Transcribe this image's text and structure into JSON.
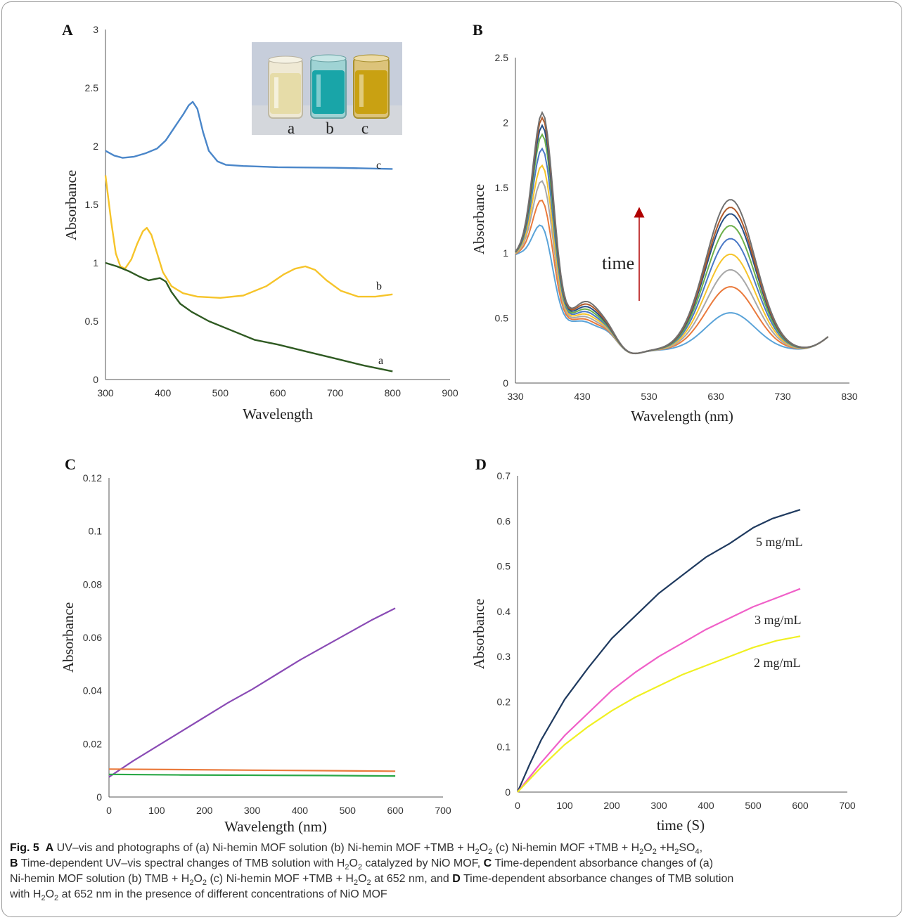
{
  "colors": {
    "A_a": "#2f5a22",
    "A_b": "#f6c42a",
    "A_c": "#4a86c9",
    "D_5": "#1f3a5f",
    "D_3": "#f060c8",
    "D_2": "#f0f022",
    "C_1": "#8a4bb5",
    "C_2": "#ea7a3c",
    "C_3": "#2aa847",
    "arrow": "#b00000",
    "time_text": "#7a3a9a",
    "vial_letter": "#e01818"
  },
  "chart_data": [
    {
      "panel": "A",
      "type": "line",
      "xlabel": "Wavelength",
      "ylabel": "Absorbance",
      "xlim": [
        300,
        900
      ],
      "ylim": [
        0,
        3
      ],
      "xticks": [
        "300",
        "400",
        "500",
        "600",
        "700",
        "800",
        "900"
      ],
      "yticks": [
        "0",
        "0.5",
        "1",
        "1.5",
        "2",
        "2.5",
        "3"
      ],
      "inset": {
        "type": "photograph",
        "labels": [
          "a",
          "b",
          "c"
        ]
      },
      "series": [
        {
          "name": "c",
          "color_key": "A_c",
          "points": [
            [
              300,
              1.96
            ],
            [
              315,
              1.92
            ],
            [
              330,
              1.9
            ],
            [
              350,
              1.91
            ],
            [
              370,
              1.94
            ],
            [
              390,
              1.98
            ],
            [
              405,
              2.05
            ],
            [
              420,
              2.16
            ],
            [
              435,
              2.27
            ],
            [
              445,
              2.35
            ],
            [
              452,
              2.38
            ],
            [
              460,
              2.32
            ],
            [
              470,
              2.12
            ],
            [
              480,
              1.96
            ],
            [
              495,
              1.87
            ],
            [
              510,
              1.84
            ],
            [
              540,
              1.83
            ],
            [
              600,
              1.82
            ],
            [
              700,
              1.815
            ],
            [
              800,
              1.805
            ]
          ]
        },
        {
          "name": "b",
          "color_key": "A_b",
          "points": [
            [
              300,
              1.75
            ],
            [
              310,
              1.35
            ],
            [
              318,
              1.08
            ],
            [
              326,
              0.97
            ],
            [
              334,
              0.95
            ],
            [
              345,
              1.03
            ],
            [
              355,
              1.16
            ],
            [
              365,
              1.27
            ],
            [
              372,
              1.3
            ],
            [
              380,
              1.24
            ],
            [
              390,
              1.08
            ],
            [
              400,
              0.92
            ],
            [
              415,
              0.8
            ],
            [
              435,
              0.74
            ],
            [
              460,
              0.71
            ],
            [
              500,
              0.7
            ],
            [
              540,
              0.72
            ],
            [
              580,
              0.8
            ],
            [
              610,
              0.9
            ],
            [
              630,
              0.95
            ],
            [
              648,
              0.97
            ],
            [
              665,
              0.94
            ],
            [
              685,
              0.85
            ],
            [
              710,
              0.76
            ],
            [
              740,
              0.71
            ],
            [
              770,
              0.71
            ],
            [
              800,
              0.73
            ]
          ]
        },
        {
          "name": "a",
          "color_key": "A_a",
          "points": [
            [
              300,
              1.0
            ],
            [
              320,
              0.97
            ],
            [
              340,
              0.93
            ],
            [
              360,
              0.88
            ],
            [
              375,
              0.85
            ],
            [
              385,
              0.86
            ],
            [
              395,
              0.87
            ],
            [
              405,
              0.84
            ],
            [
              415,
              0.75
            ],
            [
              430,
              0.65
            ],
            [
              450,
              0.58
            ],
            [
              480,
              0.5
            ],
            [
              520,
              0.42
            ],
            [
              560,
              0.34
            ],
            [
              600,
              0.3
            ],
            [
              650,
              0.24
            ],
            [
              700,
              0.18
            ],
            [
              750,
              0.12
            ],
            [
              800,
              0.07
            ]
          ]
        }
      ]
    },
    {
      "panel": "B",
      "type": "line",
      "xlabel": "Wavelength (nm)",
      "ylabel": "Absorbance",
      "xlim": [
        330,
        830
      ],
      "ylim": [
        0,
        2.5
      ],
      "xticks": [
        "330",
        "430",
        "530",
        "630",
        "730",
        "830"
      ],
      "yticks": [
        "0",
        "0.5",
        "1",
        "1.5",
        "2",
        "2.5"
      ],
      "annotation": "time",
      "peak1": [
        0.96,
        1.16,
        1.31,
        1.43,
        1.56,
        1.67,
        1.74,
        1.8,
        1.84
      ],
      "peak2": [
        0.41,
        0.61,
        0.74,
        0.86,
        0.98,
        1.08,
        1.17,
        1.22,
        1.28
      ],
      "colors": [
        "#5aa3d8",
        "#ea7a3c",
        "#a8a8a8",
        "#f6c42a",
        "#4a78c6",
        "#6cb04a",
        "#264f86",
        "#b05a2a",
        "#707070"
      ]
    },
    {
      "panel": "C",
      "type": "line",
      "xlabel": "Wavelength (nm)",
      "ylabel": "Absorbance",
      "xlim": [
        0,
        700
      ],
      "ylim": [
        0,
        0.12
      ],
      "xticks": [
        "0",
        "100",
        "200",
        "300",
        "400",
        "500",
        "600",
        "700"
      ],
      "yticks": [
        "0",
        "0.02",
        "0.04",
        "0.06",
        "0.08",
        "0.1",
        "0.12"
      ],
      "series": [
        {
          "color_key": "C_1",
          "points": [
            [
              0,
              0.0075
            ],
            [
              50,
              0.0135
            ],
            [
              100,
              0.019
            ],
            [
              150,
              0.0245
            ],
            [
              200,
              0.03
            ],
            [
              250,
              0.0355
            ],
            [
              300,
              0.0405
            ],
            [
              350,
              0.046
            ],
            [
              400,
              0.0515
            ],
            [
              450,
              0.0565
            ],
            [
              500,
              0.0615
            ],
            [
              550,
              0.0665
            ],
            [
              600,
              0.071
            ]
          ]
        },
        {
          "color_key": "C_2",
          "points": [
            [
              0,
              0.0105
            ],
            [
              150,
              0.0103
            ],
            [
              300,
              0.0101
            ],
            [
              450,
              0.0099
            ],
            [
              600,
              0.0097
            ]
          ]
        },
        {
          "color_key": "C_3",
          "points": [
            [
              0,
              0.0085
            ],
            [
              150,
              0.0083
            ],
            [
              300,
              0.0082
            ],
            [
              450,
              0.0081
            ],
            [
              600,
              0.0079
            ]
          ]
        }
      ]
    },
    {
      "panel": "D",
      "type": "line",
      "xlabel": "time (S)",
      "ylabel": "Absorbance",
      "xlim": [
        0,
        700
      ],
      "ylim": [
        0,
        0.7
      ],
      "xticks": [
        "0",
        "100",
        "200",
        "300",
        "400",
        "500",
        "600",
        "700"
      ],
      "yticks": [
        "0",
        "0.1",
        "0.2",
        "0.3",
        "0.4",
        "0.5",
        "0.6",
        "0.7"
      ],
      "series": [
        {
          "name": "5 mg/mL",
          "color_key": "D_5",
          "points": [
            [
              0,
              0
            ],
            [
              25,
              0.06
            ],
            [
              50,
              0.115
            ],
            [
              100,
              0.205
            ],
            [
              150,
              0.275
            ],
            [
              200,
              0.34
            ],
            [
              250,
              0.39
            ],
            [
              300,
              0.44
            ],
            [
              350,
              0.48
            ],
            [
              400,
              0.52
            ],
            [
              450,
              0.55
            ],
            [
              500,
              0.585
            ],
            [
              540,
              0.605
            ],
            [
              570,
              0.615
            ],
            [
              600,
              0.625
            ]
          ]
        },
        {
          "name": "3 mg/mL",
          "color_key": "D_3",
          "points": [
            [
              0,
              0
            ],
            [
              50,
              0.065
            ],
            [
              100,
              0.125
            ],
            [
              150,
              0.175
            ],
            [
              200,
              0.225
            ],
            [
              250,
              0.265
            ],
            [
              300,
              0.3
            ],
            [
              350,
              0.33
            ],
            [
              400,
              0.36
            ],
            [
              450,
              0.385
            ],
            [
              500,
              0.41
            ],
            [
              550,
              0.43
            ],
            [
              600,
              0.45
            ]
          ]
        },
        {
          "name": "2 mg/mL",
          "color_key": "D_2",
          "points": [
            [
              0,
              0
            ],
            [
              50,
              0.055
            ],
            [
              100,
              0.105
            ],
            [
              150,
              0.145
            ],
            [
              200,
              0.18
            ],
            [
              250,
              0.21
            ],
            [
              300,
              0.235
            ],
            [
              350,
              0.26
            ],
            [
              400,
              0.28
            ],
            [
              450,
              0.3
            ],
            [
              500,
              0.32
            ],
            [
              550,
              0.335
            ],
            [
              600,
              0.345
            ]
          ]
        }
      ]
    }
  ],
  "caption": {
    "fig": "Fig. 5",
    "l1_a": "A",
    "l1_b": " UV–vis and photographs of (a) Ni-hemin MOF solution (b) Ni-hemin MOF +TMB + H",
    "l1_c": "O",
    "l1_d": " (c) Ni-hemin MOF +TMB + H",
    "l1_e": "O",
    "l1_f": " +H",
    "l1_g": "SO",
    "l1_h": ",",
    "l2_a": "B",
    "l2_b": " Time-dependent UV–vis spectral changes of TMB solution with H",
    "l2_c": "O",
    "l2_d": " catalyzed by NiO MOF, ",
    "l2_e": "C",
    "l2_f": " Time-dependent absorbance changes of (a)",
    "l3_a": "Ni-hemin MOF solution (b) TMB + H",
    "l3_b": "O",
    "l3_c": " (c) Ni-hemin MOF +TMB + H",
    "l3_d": "O",
    "l3_e": " at 652 nm, and ",
    "l3_f": "D",
    "l3_g": " Time-dependent absorbance changes of TMB solution",
    "l4_a": "with H",
    "l4_b": "O",
    "l4_c": " at 652 nm in the presence of different concentrations of NiO MOF",
    "sub2": "2",
    "sub4": "4"
  }
}
